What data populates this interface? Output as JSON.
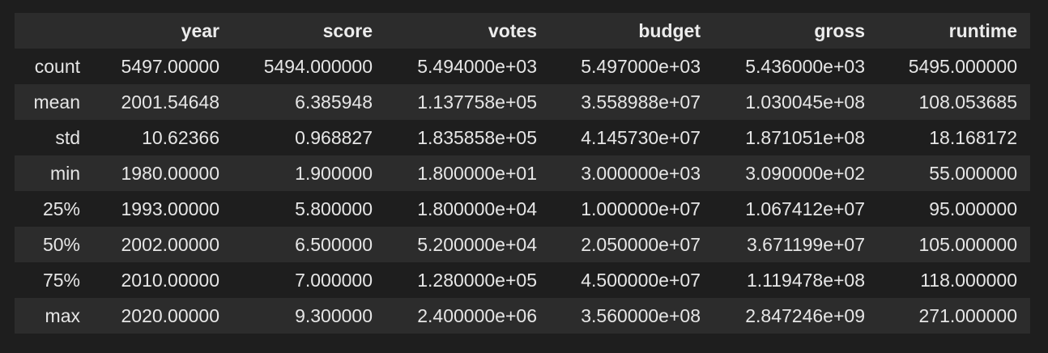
{
  "table": {
    "index_header": "",
    "columns": [
      "year",
      "score",
      "votes",
      "budget",
      "gross",
      "runtime"
    ],
    "rows": [
      {
        "label": "count",
        "values": [
          "5497.00000",
          "5494.000000",
          "5.494000e+03",
          "5.497000e+03",
          "5.436000e+03",
          "5495.000000"
        ]
      },
      {
        "label": "mean",
        "values": [
          "2001.54648",
          "6.385948",
          "1.137758e+05",
          "3.558988e+07",
          "1.030045e+08",
          "108.053685"
        ]
      },
      {
        "label": "std",
        "values": [
          "10.62366",
          "0.968827",
          "1.835858e+05",
          "4.145730e+07",
          "1.871051e+08",
          "18.168172"
        ]
      },
      {
        "label": "min",
        "values": [
          "1980.00000",
          "1.900000",
          "1.800000e+01",
          "3.000000e+03",
          "3.090000e+02",
          "55.000000"
        ]
      },
      {
        "label": "25%",
        "values": [
          "1993.00000",
          "5.800000",
          "1.800000e+04",
          "1.000000e+07",
          "1.067412e+07",
          "95.000000"
        ]
      },
      {
        "label": "50%",
        "values": [
          "2002.00000",
          "6.500000",
          "5.200000e+04",
          "2.050000e+07",
          "3.671199e+07",
          "105.000000"
        ]
      },
      {
        "label": "75%",
        "values": [
          "2010.00000",
          "7.000000",
          "1.280000e+05",
          "4.500000e+07",
          "1.119478e+08",
          "118.000000"
        ]
      },
      {
        "label": "max",
        "values": [
          "2020.00000",
          "9.300000",
          "2.400000e+06",
          "3.560000e+08",
          "2.847246e+09",
          "271.000000"
        ]
      }
    ]
  }
}
